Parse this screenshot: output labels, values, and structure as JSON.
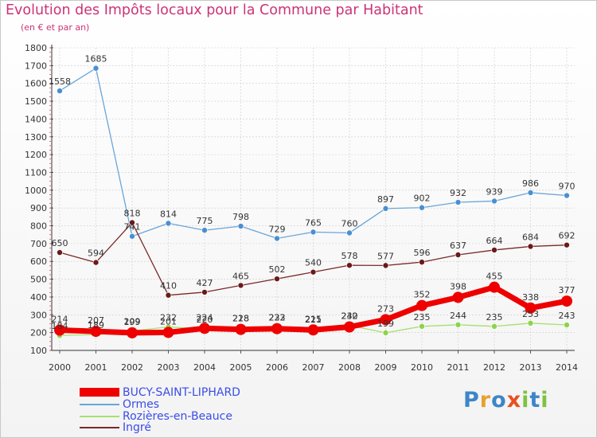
{
  "header": {
    "title": "Evolution des Impôts locaux pour la Commune par Habitant",
    "subtitle": "(en € et par an)"
  },
  "logo": {
    "text": "Proxiti",
    "letters": [
      "P",
      "r",
      "o",
      "x",
      "i",
      "t",
      "i"
    ],
    "colors": [
      "#3d86c6",
      "#e8a030",
      "#3d86c6",
      "#e84f22",
      "#7fc241",
      "#3d86c6",
      "#7fc241"
    ]
  },
  "colors": {
    "title": "#cc3377",
    "axis": "#333333",
    "grid": "#cccccc",
    "tick_dash": "#ee4444",
    "legend_text": "#3a4de6"
  },
  "chart_data": {
    "type": "line",
    "title": "Evolution des Impôts locaux pour la Commune par Habitant",
    "subtitle": "(en € et par an)",
    "x": [
      "2000",
      "2001",
      "2002",
      "2003",
      "2004",
      "2005",
      "2006",
      "2007",
      "2008",
      "2009",
      "2010",
      "2011",
      "2012",
      "2013",
      "2014"
    ],
    "ylim": [
      100,
      1800
    ],
    "yticks": [
      100,
      200,
      300,
      400,
      500,
      600,
      700,
      800,
      900,
      1000,
      1100,
      1200,
      1300,
      1400,
      1500,
      1600,
      1700,
      1800
    ],
    "grid": true,
    "legend_position": "bottom-left",
    "series": [
      {
        "name": "BUCY-SAINT-LIPHARD",
        "color": "#ee0000",
        "line_width": 7,
        "marker_radius": 7,
        "values": [
          214,
          207,
          199,
          201,
          224,
          218,
          222,
          215,
          232,
          273,
          352,
          398,
          455,
          338,
          377
        ]
      },
      {
        "name": "Ormes",
        "color": "#6aa5d8",
        "marker_color": "#4a8fd0",
        "line_width": 1.3,
        "marker_radius": 3.5,
        "values": [
          1558,
          1685,
          741,
          814,
          775,
          798,
          729,
          765,
          760,
          897,
          902,
          932,
          939,
          986,
          970
        ]
      },
      {
        "name": "Rozières-en-Beauce",
        "color": "#a8df70",
        "marker_color": "#8cd44a",
        "line_width": 1.3,
        "marker_radius": 3.5,
        "values": [
          184,
          189,
          209,
          232,
          220,
          228,
          233,
          221,
          240,
          199,
          235,
          244,
          235,
          253,
          243
        ]
      },
      {
        "name": "Ingré",
        "color": "#7a2828",
        "marker_color": "#6a1a1a",
        "line_width": 1.3,
        "marker_radius": 3.5,
        "values": [
          650,
          594,
          818,
          410,
          427,
          465,
          502,
          540,
          578,
          577,
          596,
          637,
          664,
          684,
          692
        ]
      }
    ]
  }
}
